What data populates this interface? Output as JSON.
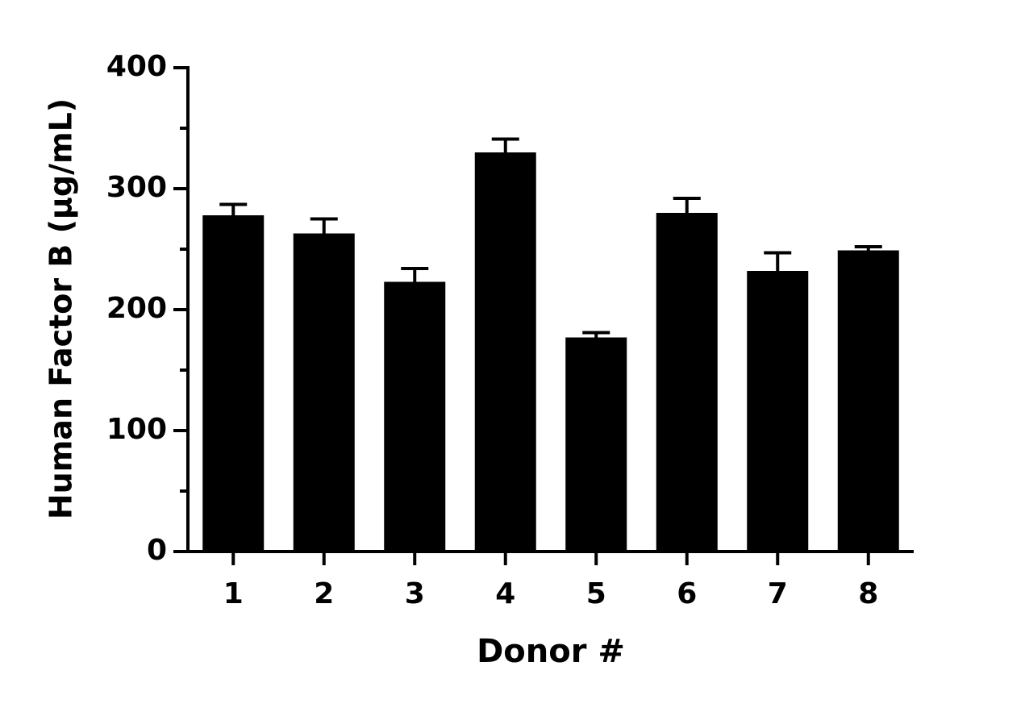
{
  "chart_data": {
    "type": "bar",
    "x_label": "Donor #",
    "y_label": "Human Factor B (µg/mL)",
    "categories": [
      "1",
      "2",
      "3",
      "4",
      "5",
      "6",
      "7",
      "8"
    ],
    "values": [
      278,
      263,
      223,
      330,
      177,
      280,
      232,
      249
    ],
    "errors": [
      9,
      12,
      11,
      11,
      4,
      12,
      15,
      3
    ],
    "color": "#000000",
    "ylim": [
      0,
      400
    ],
    "yticks": [
      0,
      100,
      200,
      300,
      400
    ],
    "minor_yticks": [
      50,
      150,
      250,
      350
    ]
  }
}
